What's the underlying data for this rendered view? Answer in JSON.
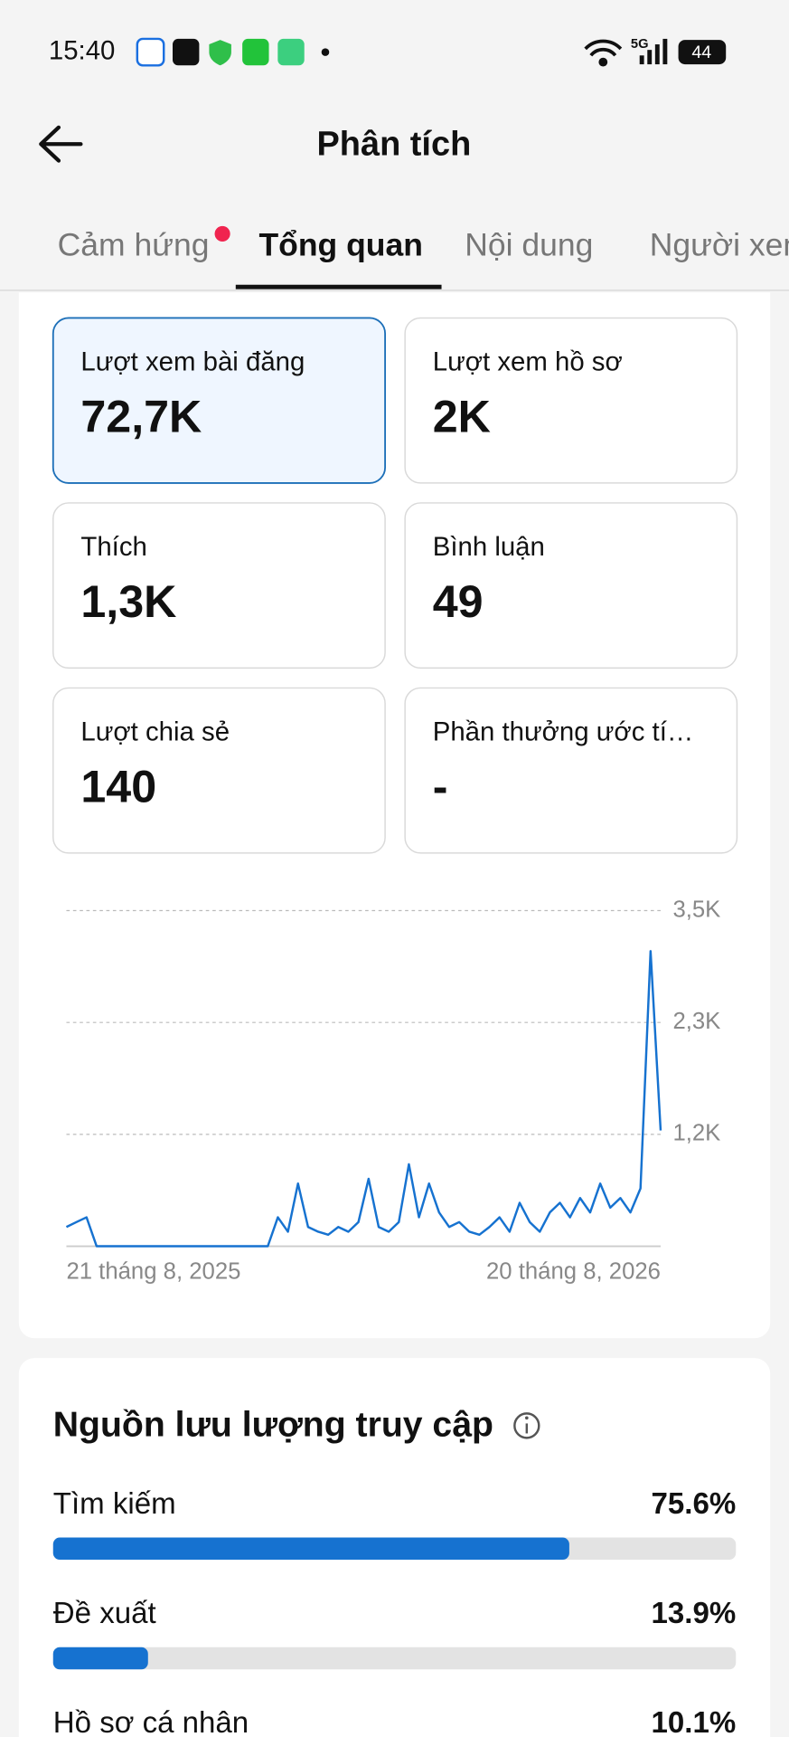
{
  "status_bar": {
    "time": "15:40",
    "network": "5G",
    "battery": "44"
  },
  "header": {
    "title": "Phân tích"
  },
  "tabs": [
    "Cảm hứng",
    "Tổng quan",
    "Nội dung",
    "Người xem"
  ],
  "metrics": [
    {
      "label": "Lượt xem bài đăng",
      "value": "72,7K"
    },
    {
      "label": "Lượt xem hồ sơ",
      "value": "2K"
    },
    {
      "label": "Thích",
      "value": "1,3K"
    },
    {
      "label": "Bình luận",
      "value": "49"
    },
    {
      "label": "Lượt chia sẻ",
      "value": "140"
    },
    {
      "label": "Phần thưởng ước tí…",
      "value": "-"
    }
  ],
  "chart": {
    "type": "line",
    "color": "#1672d0",
    "categories": [
      "21 tháng 8, 2025",
      null,
      null,
      null,
      null,
      null,
      null,
      null,
      null,
      null,
      null,
      null,
      null,
      null,
      null,
      null,
      null,
      null,
      null,
      null,
      null,
      null,
      null,
      null,
      null,
      null,
      null,
      null,
      null,
      null,
      null,
      null,
      null,
      null,
      null,
      null,
      null,
      null,
      null,
      null,
      null,
      null,
      null,
      null,
      null,
      null,
      null,
      null,
      null,
      null,
      null,
      null,
      null,
      null,
      null,
      null,
      null,
      null,
      null,
      "20 tháng 8, 2026"
    ],
    "values": [
      200,
      250,
      300,
      0,
      0,
      0,
      0,
      0,
      0,
      0,
      0,
      0,
      0,
      0,
      0,
      0,
      0,
      0,
      0,
      0,
      0,
      300,
      150,
      650,
      200,
      150,
      120,
      200,
      150,
      250,
      700,
      200,
      150,
      250,
      850,
      300,
      650,
      350,
      200,
      250,
      150,
      120,
      200,
      300,
      150,
      450,
      250,
      150,
      350,
      450,
      300,
      500,
      350,
      650,
      400,
      500,
      350,
      600,
      3060,
      1200
    ],
    "ylim": [
      0,
      3480
    ],
    "yticks": [
      {
        "value": 1160,
        "label": "1,2K"
      },
      {
        "value": 2320,
        "label": "2,3K"
      },
      {
        "value": 3480,
        "label": "3,5K"
      }
    ],
    "grid": true
  },
  "traffic": {
    "title": "Nguồn lưu lượng truy cập",
    "names": [
      "Tìm kiếm",
      "Đề xuất",
      "Hồ sơ cá nhân"
    ],
    "values": [
      75.6,
      13.9,
      10.1
    ],
    "value_labels": [
      "75.6%",
      "13.9%",
      "10.1%"
    ],
    "xlim": [
      0,
      100
    ]
  }
}
